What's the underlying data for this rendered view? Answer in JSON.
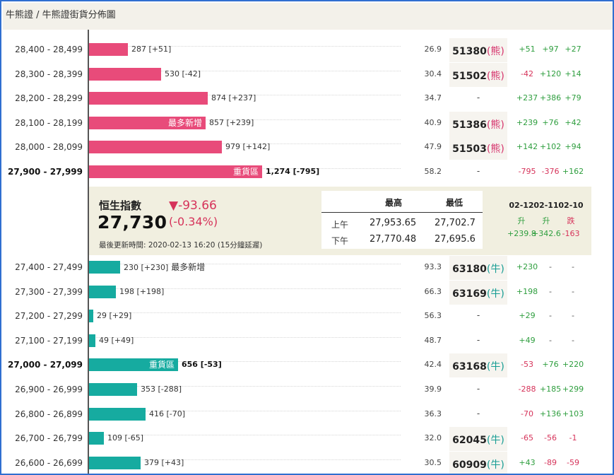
{
  "breadcrumb": "牛熊證 / 牛熊證街貨分佈圖",
  "colors": {
    "bear": "#e84b7a",
    "bull": "#16aba0",
    "up": "#2e9e3e",
    "down": "#d6335a"
  },
  "bear_rows": [
    {
      "range": "28,400 - 28,499",
      "count": "287 [+51]",
      "count_value": 287,
      "ratio": "26.9",
      "code": "51380",
      "kind": "(熊)",
      "changes": [
        "+51",
        "+97",
        "+27"
      ]
    },
    {
      "range": "28,300 - 28,399",
      "count": "530 [-42]",
      "count_value": 530,
      "ratio": "30.4",
      "code": "51502",
      "kind": "(熊)",
      "changes": [
        "-42",
        "+120",
        "+14"
      ]
    },
    {
      "range": "28,200 - 28,299",
      "count": "874 [+237]",
      "count_value": 874,
      "ratio": "34.7",
      "code": "-",
      "kind": "",
      "changes": [
        "+237",
        "+386",
        "+79"
      ]
    },
    {
      "range": "28,100 - 28,199",
      "count": "857 [+239]",
      "count_value": 857,
      "ratio": "40.9",
      "code": "51386",
      "kind": "(熊)",
      "label": "最多新增",
      "changes": [
        "+239",
        "+76",
        "+42"
      ]
    },
    {
      "range": "28,000 - 28,099",
      "count": "979 [+142]",
      "count_value": 979,
      "ratio": "47.9",
      "code": "51503",
      "kind": "(熊)",
      "changes": [
        "+142",
        "+102",
        "+94"
      ]
    },
    {
      "range": "27,900 - 27,999",
      "count": "1,274 [-795]",
      "count_value": 1274,
      "ratio": "58.2",
      "code": "-",
      "kind": "",
      "label": "重貨區",
      "bold": true,
      "changes": [
        "-795",
        "-376",
        "+162"
      ]
    }
  ],
  "index_panel": {
    "name": "恒生指數",
    "value": "27,730",
    "change": "▼-93.66",
    "change_pct": "(-0.34%)",
    "updated": "最後更新時間: 2020-02-13 16:20 (15分鐘延遲)",
    "high_low": {
      "header_high": "最高",
      "header_low": "最低",
      "rows": [
        {
          "label": "上午",
          "high": "27,953.65",
          "low": "27,702.7"
        },
        {
          "label": "下午",
          "high": "27,770.48",
          "low": "27,695.6"
        }
      ]
    },
    "dates": [
      {
        "date": "02-12",
        "dir": "升",
        "value": "+239.8"
      },
      {
        "date": "02-11",
        "dir": "升",
        "value": "+342.6"
      },
      {
        "date": "02-10",
        "dir": "跌",
        "value": "-163"
      }
    ]
  },
  "bull_rows": [
    {
      "range": "27,400 - 27,499",
      "count": "230 [+230]",
      "count_value": 230,
      "after_label": "最多新增",
      "ratio": "93.3",
      "code": "63180",
      "kind": "(牛)",
      "changes": [
        "+230",
        "-",
        "-"
      ]
    },
    {
      "range": "27,300 - 27,399",
      "count": "198 [+198]",
      "count_value": 198,
      "ratio": "66.3",
      "code": "63169",
      "kind": "(牛)",
      "changes": [
        "+198",
        "-",
        "-"
      ]
    },
    {
      "range": "27,200 - 27,299",
      "count": "29 [+29]",
      "count_value": 29,
      "ratio": "56.3",
      "code": "-",
      "kind": "",
      "changes": [
        "+29",
        "-",
        "-"
      ]
    },
    {
      "range": "27,100 - 27,199",
      "count": "49 [+49]",
      "count_value": 49,
      "ratio": "48.7",
      "code": "-",
      "kind": "",
      "changes": [
        "+49",
        "-",
        "-"
      ]
    },
    {
      "range": "27,000 - 27,099",
      "count": "656 [-53]",
      "count_value": 656,
      "ratio": "42.4",
      "code": "63168",
      "kind": "(牛)",
      "label": "重貨區",
      "bold": true,
      "changes": [
        "-53",
        "+76",
        "+220"
      ]
    },
    {
      "range": "26,900 - 26,999",
      "count": "353 [-288]",
      "count_value": 353,
      "ratio": "39.9",
      "code": "-",
      "kind": "",
      "changes": [
        "-288",
        "+185",
        "+299"
      ]
    },
    {
      "range": "26,800 - 26,899",
      "count": "416 [-70]",
      "count_value": 416,
      "ratio": "36.3",
      "code": "-",
      "kind": "",
      "changes": [
        "-70",
        "+136",
        "+103"
      ]
    },
    {
      "range": "26,700 - 26,799",
      "count": "109 [-65]",
      "count_value": 109,
      "ratio": "32.0",
      "code": "62045",
      "kind": "(牛)",
      "changes": [
        "-65",
        "-56",
        "-1"
      ]
    },
    {
      "range": "26,600 - 26,699",
      "count": "379 [+43]",
      "count_value": 379,
      "ratio": "30.5",
      "code": "60909",
      "kind": "(牛)",
      "changes": [
        "+43",
        "-89",
        "-59"
      ]
    }
  ]
}
